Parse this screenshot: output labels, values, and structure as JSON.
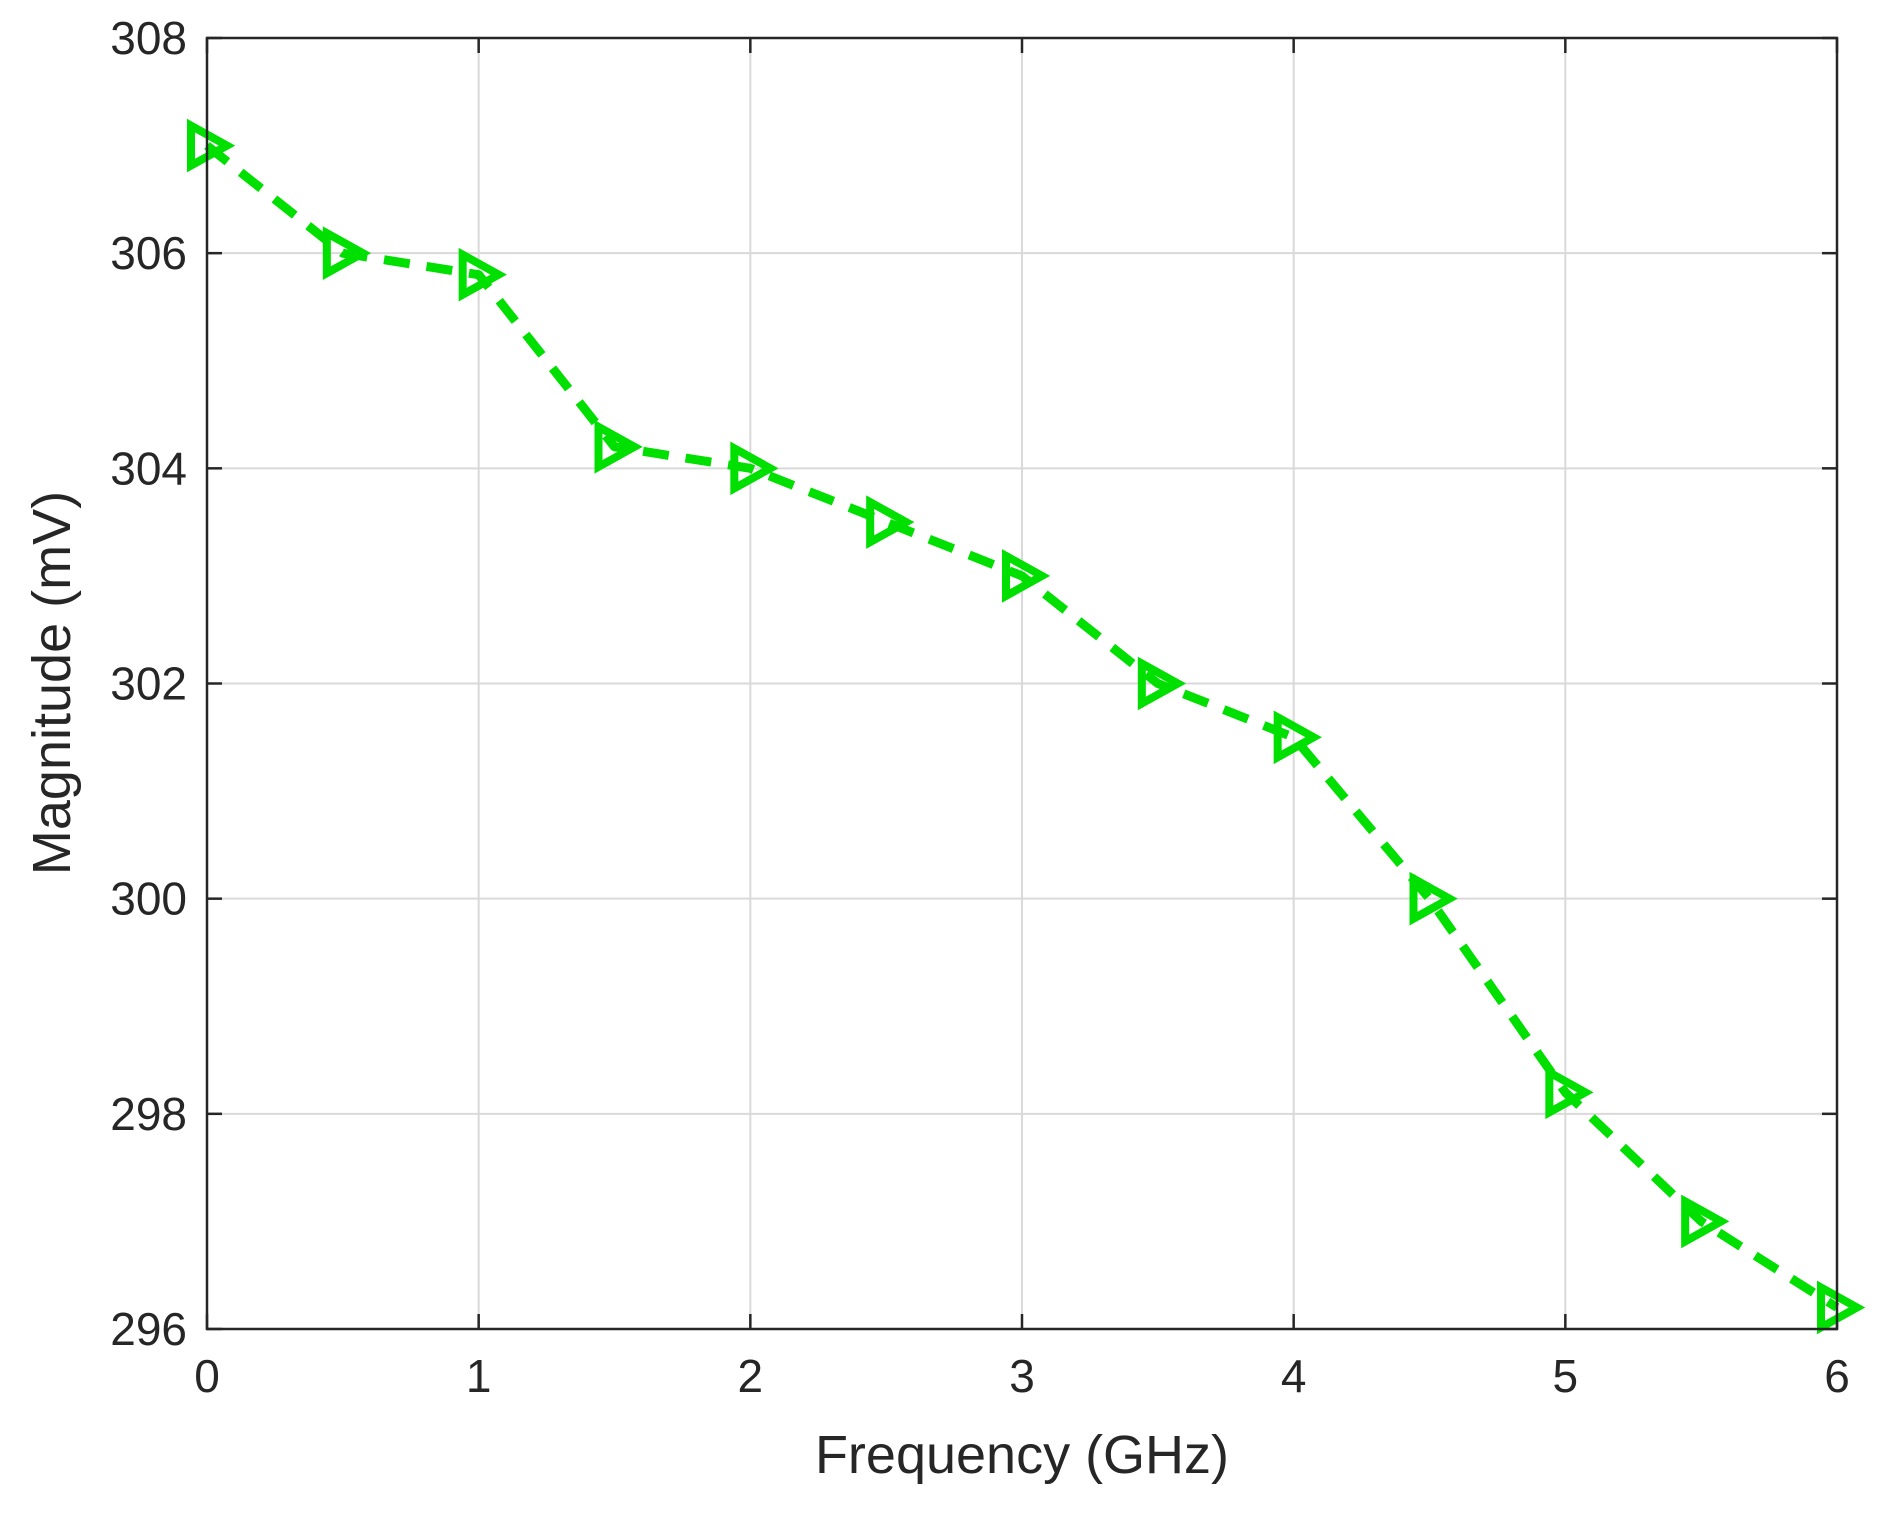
{
  "chart_data": {
    "type": "line",
    "xlabel": "Frequency (GHz)",
    "ylabel": "Magnitude (mV)",
    "xlim": [
      0,
      6
    ],
    "ylim": [
      296,
      308
    ],
    "xticks": [
      0,
      1,
      2,
      3,
      4,
      5,
      6
    ],
    "yticks": [
      296,
      298,
      300,
      302,
      304,
      306,
      308
    ],
    "grid": true,
    "line_style": "dashed",
    "marker": "triangle-right",
    "series": [
      {
        "color": "#00e000",
        "x": [
          0,
          0.5,
          1,
          1.5,
          2,
          2.5,
          3,
          3.5,
          4,
          4.5,
          5,
          5.5,
          6
        ],
        "y": [
          307,
          306,
          305.8,
          304.2,
          304,
          303.5,
          303,
          302,
          301.5,
          300,
          298.2,
          297,
          296.2
        ]
      }
    ]
  }
}
